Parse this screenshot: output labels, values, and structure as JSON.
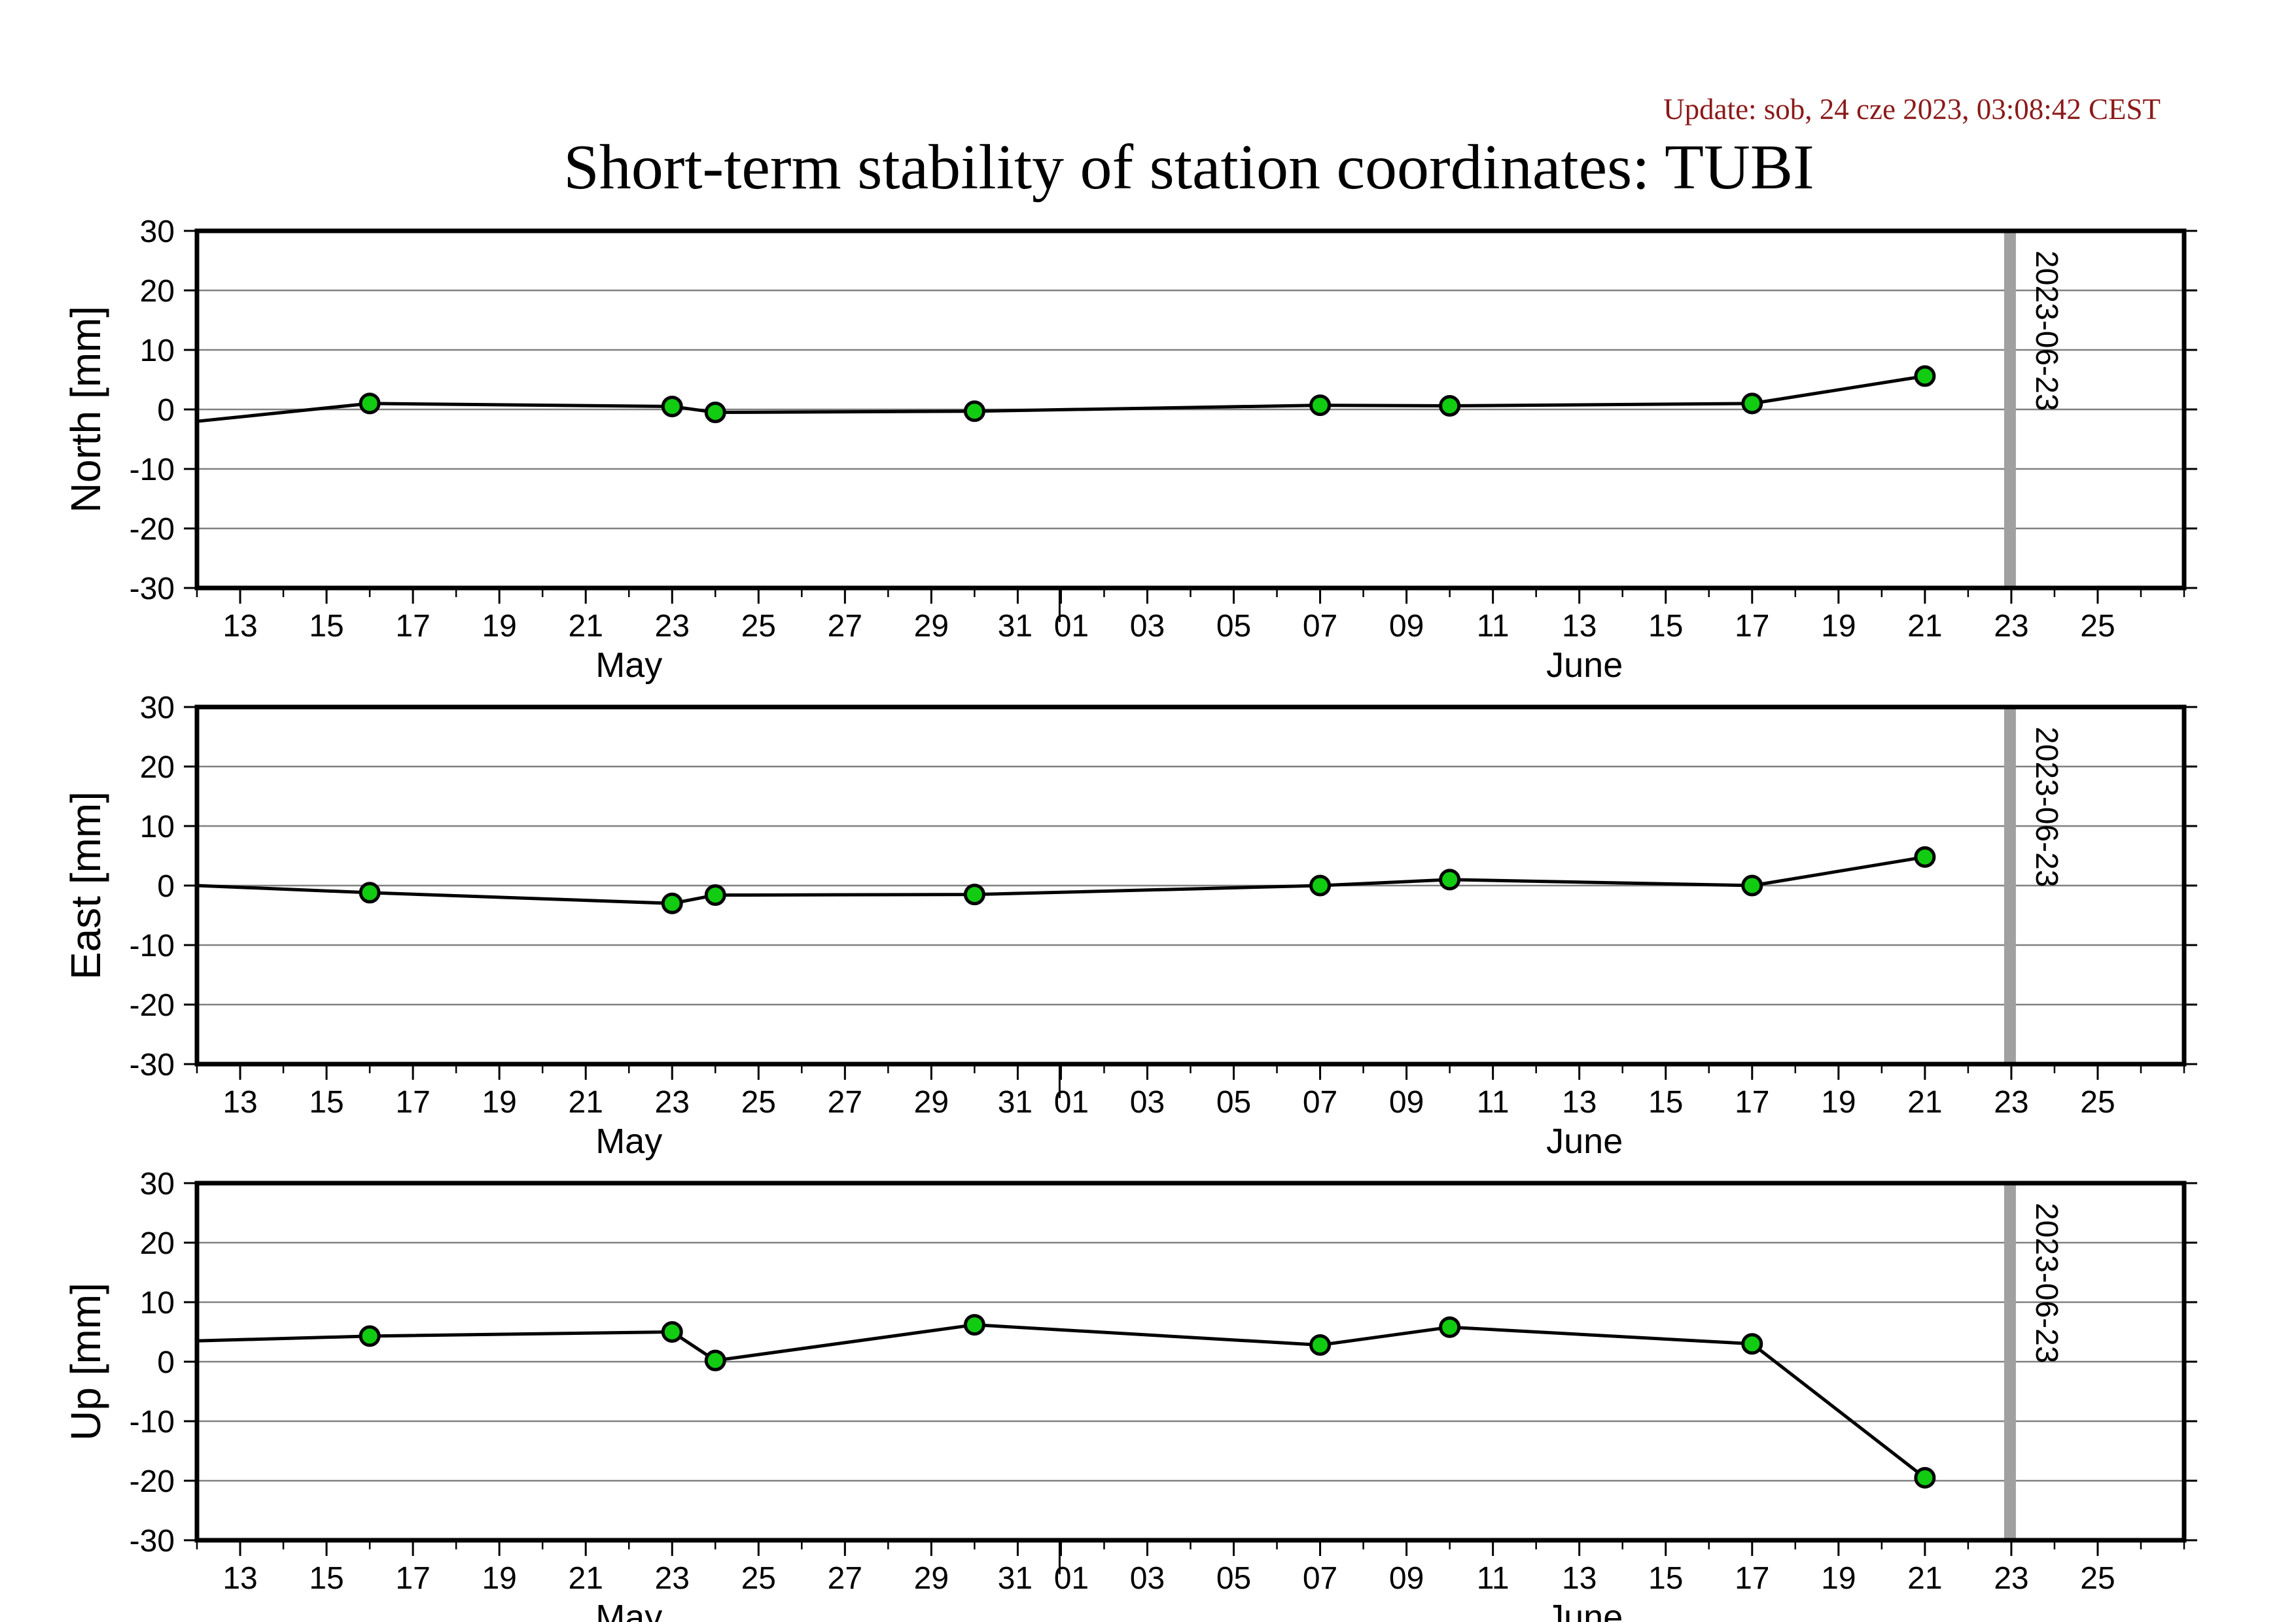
{
  "header": {
    "update_text": "Update: sob, 24 cze 2023, 03:08:42 CEST",
    "title": "Short-term stability of station coordinates: TUBI"
  },
  "colors": {
    "marker_fill": "#11cc11",
    "marker_stroke": "#000000",
    "series_line": "#000000",
    "today_line": "#a0a0a0",
    "gridline": "#808080",
    "update_text": "#8b1a1a"
  },
  "chart_data": [
    {
      "type": "line",
      "ylabel": "North [mm]",
      "ylim": [
        -30,
        30
      ],
      "yticks": [
        -30,
        -20,
        -10,
        0,
        10,
        20,
        30
      ],
      "xlim": [
        "2023-05-12",
        "2023-06-27"
      ],
      "x_tick_labels": [
        "13",
        "15",
        "17",
        "19",
        "21",
        "23",
        "25",
        "27",
        "29",
        "31",
        "01",
        "03",
        "05",
        "07",
        "09",
        "11",
        "13",
        "15",
        "17",
        "19",
        "21",
        "23",
        "25"
      ],
      "month_labels": [
        "May",
        "June"
      ],
      "grid": "horizontal",
      "today_marker": "2023-06-23",
      "line_start": {
        "x": "2023-05-12",
        "y": -2.0
      },
      "x": [
        "2023-05-16",
        "2023-05-23",
        "2023-05-24",
        "2023-05-30",
        "2023-06-07",
        "2023-06-10",
        "2023-06-17",
        "2023-06-21"
      ],
      "values": [
        1.0,
        0.5,
        -0.5,
        -0.3,
        0.7,
        0.6,
        1.0,
        5.6
      ]
    },
    {
      "type": "line",
      "ylabel": "East [mm]",
      "ylim": [
        -30,
        30
      ],
      "yticks": [
        -30,
        -20,
        -10,
        0,
        10,
        20,
        30
      ],
      "xlim": [
        "2023-05-12",
        "2023-06-27"
      ],
      "x_tick_labels": [
        "13",
        "15",
        "17",
        "19",
        "21",
        "23",
        "25",
        "27",
        "29",
        "31",
        "01",
        "03",
        "05",
        "07",
        "09",
        "11",
        "13",
        "15",
        "17",
        "19",
        "21",
        "23",
        "25"
      ],
      "month_labels": [
        "May",
        "June"
      ],
      "grid": "horizontal",
      "today_marker": "2023-06-23",
      "line_start": {
        "x": "2023-05-12",
        "y": 0.0
      },
      "x": [
        "2023-05-16",
        "2023-05-23",
        "2023-05-24",
        "2023-05-30",
        "2023-06-07",
        "2023-06-10",
        "2023-06-17",
        "2023-06-21"
      ],
      "values": [
        -1.2,
        -3.0,
        -1.6,
        -1.5,
        0.0,
        1.0,
        0.0,
        4.8
      ]
    },
    {
      "type": "line",
      "ylabel": "Up [mm]",
      "ylim": [
        -30,
        30
      ],
      "yticks": [
        -30,
        -20,
        -10,
        0,
        10,
        20,
        30
      ],
      "xlim": [
        "2023-05-12",
        "2023-06-27"
      ],
      "x_tick_labels": [
        "13",
        "15",
        "17",
        "19",
        "21",
        "23",
        "25",
        "27",
        "29",
        "31",
        "01",
        "03",
        "05",
        "07",
        "09",
        "11",
        "13",
        "15",
        "17",
        "19",
        "21",
        "23",
        "25"
      ],
      "month_labels": [
        "May",
        "June"
      ],
      "grid": "horizontal",
      "today_marker": "2023-06-23",
      "line_start": {
        "x": "2023-05-12",
        "y": 3.5
      },
      "x": [
        "2023-05-16",
        "2023-05-23",
        "2023-05-24",
        "2023-05-30",
        "2023-06-07",
        "2023-06-10",
        "2023-06-17",
        "2023-06-21"
      ],
      "values": [
        4.3,
        5.0,
        0.2,
        6.2,
        2.8,
        5.8,
        3.0,
        -19.5
      ]
    }
  ]
}
